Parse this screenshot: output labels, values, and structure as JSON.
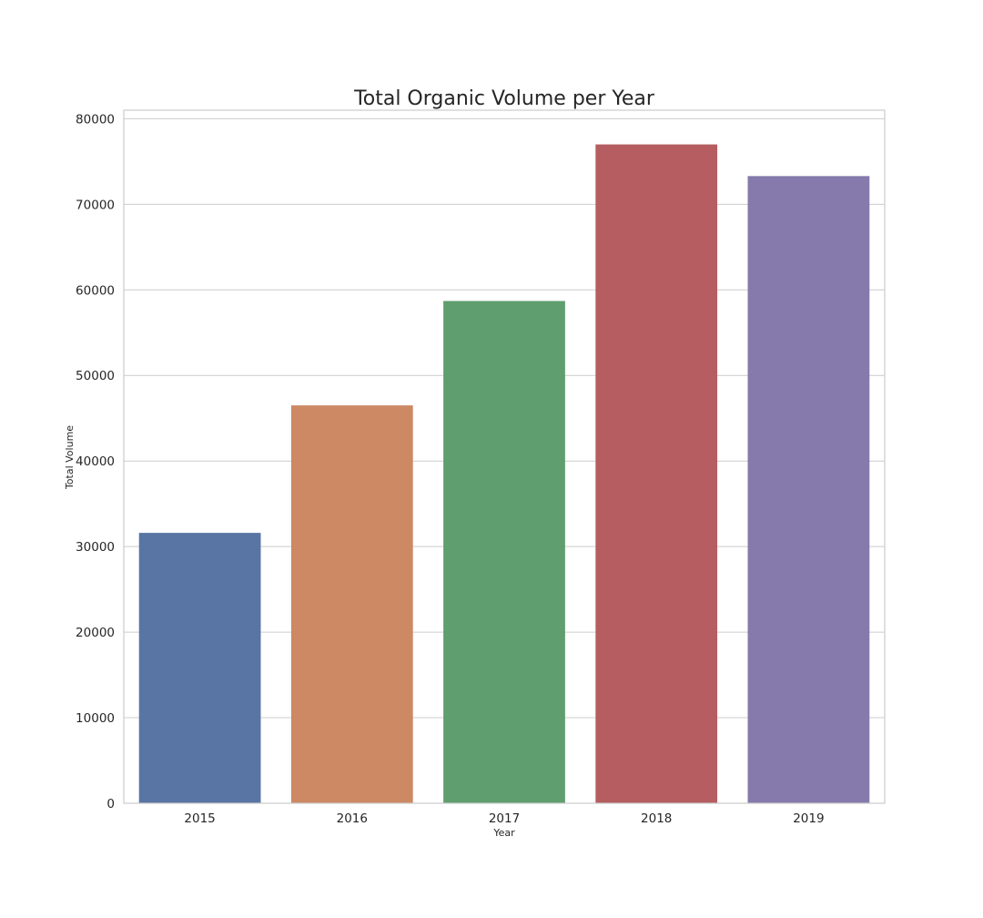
{
  "chart_data": {
    "type": "bar",
    "title": "Total Organic Volume per Year",
    "xlabel": "Year",
    "ylabel": "Total Volume",
    "categories": [
      "2015",
      "2016",
      "2017",
      "2018",
      "2019"
    ],
    "values": [
      31600,
      46500,
      58700,
      77000,
      73300
    ],
    "colors": [
      "#5875a4",
      "#cc8963",
      "#5f9e6e",
      "#b55d60",
      "#857aab"
    ],
    "ylim": [
      0,
      81000
    ],
    "yticks": [
      0,
      10000,
      20000,
      30000,
      40000,
      50000,
      60000,
      70000,
      80000
    ],
    "grid": true,
    "legend": "none"
  }
}
